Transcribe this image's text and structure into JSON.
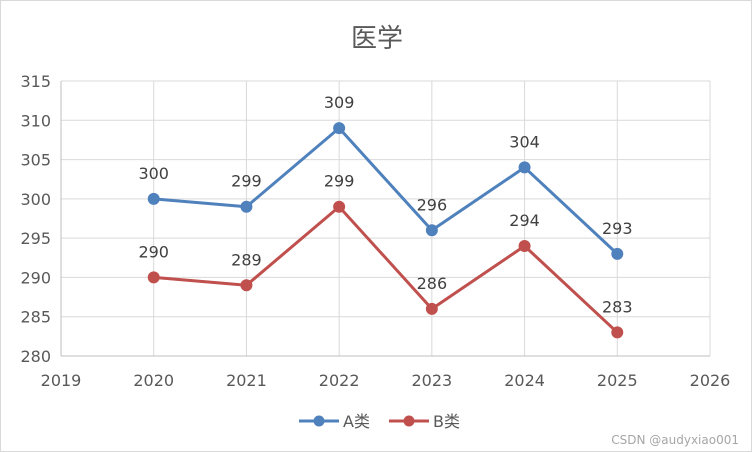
{
  "chart_data": {
    "type": "line",
    "title": "医学",
    "xlabel": "",
    "ylabel": "",
    "xlim": [
      2019,
      2026
    ],
    "ylim": [
      280,
      315
    ],
    "xticks": [
      "2019",
      "2020",
      "2021",
      "2022",
      "2023",
      "2024",
      "2025",
      "2026"
    ],
    "yticks": [
      "280",
      "285",
      "290",
      "295",
      "300",
      "305",
      "310",
      "315"
    ],
    "grid": true,
    "legend_position": "bottom",
    "series": [
      {
        "name": "A类",
        "color": "#4f81bd",
        "x": [
          2020,
          2021,
          2022,
          2023,
          2024,
          2025
        ],
        "values": [
          300,
          299,
          309,
          296,
          304,
          293
        ],
        "labels": [
          "300",
          "299",
          "309",
          "296",
          "304",
          "293"
        ]
      },
      {
        "name": "B类",
        "color": "#c0504d",
        "x": [
          2020,
          2021,
          2022,
          2023,
          2024,
          2025
        ],
        "values": [
          290,
          289,
          299,
          286,
          294,
          283
        ],
        "labels": [
          "290",
          "289",
          "299",
          "286",
          "294",
          "283"
        ]
      }
    ]
  },
  "watermark": "CSDN @audyxiao001"
}
